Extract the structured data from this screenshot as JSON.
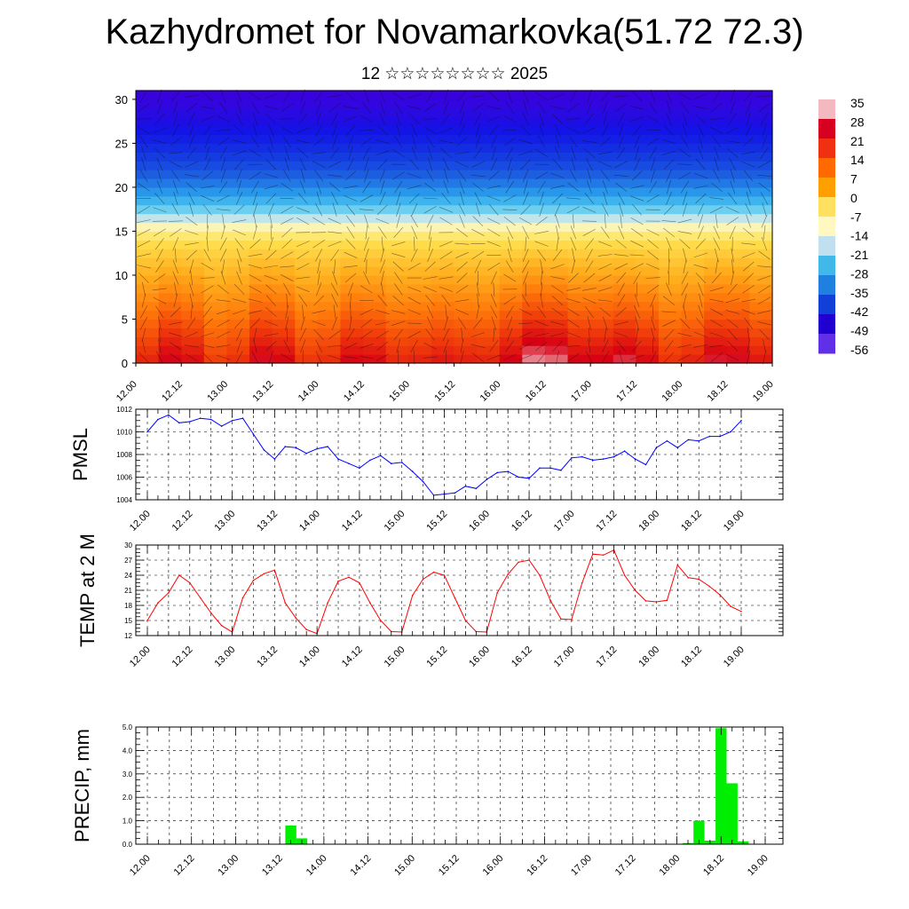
{
  "title": "Kazhydromet for Novamarkovka(51.72 72.3)",
  "subtitle": "12 ☆☆☆☆☆☆☆☆ 2025",
  "x_labels": [
    "12.00",
    "12.12",
    "13.00",
    "13.12",
    "14.00",
    "14.12",
    "15.00",
    "15.12",
    "16.00",
    "16.12",
    "17.00",
    "17.12",
    "18.00",
    "18.12",
    "19.00"
  ],
  "chart_data": [
    {
      "type": "heatmap",
      "title": "",
      "xlabel": "",
      "ylabel": "",
      "ylim": [
        0,
        31
      ],
      "y_ticks": [
        0,
        5,
        10,
        15,
        20,
        25,
        30
      ],
      "colorbar": {
        "labels": [
          "35",
          "28",
          "21",
          "14",
          "7",
          "0",
          "-7",
          "-14",
          "-21",
          "-28",
          "-35",
          "-42",
          "-49",
          "-56"
        ],
        "colors_top_to_bottom": [
          "#f4b8c0",
          "#d80020",
          "#f03010",
          "#ff6a00",
          "#ffa000",
          "#ffe060",
          "#fff8c0",
          "#c0e0f0",
          "#40b8e8",
          "#2080e0",
          "#1040d8",
          "#2000d0",
          "#6030e8"
        ]
      },
      "temperature_profile": {
        "heights": [
          0,
          5,
          10,
          14,
          16,
          18,
          20,
          22,
          25,
          28,
          31
        ],
        "values": [
          25,
          16,
          7,
          0,
          -10,
          -22,
          -30,
          -38,
          -46,
          -52,
          -56
        ]
      },
      "surface_anomaly": [
        0,
        2,
        -2,
        3,
        -1,
        1,
        2,
        -3,
        4,
        7,
        6,
        2,
        0,
        3,
        4
      ]
    },
    {
      "type": "line",
      "ylabel": "PMSL",
      "ylim": [
        1004,
        1012
      ],
      "y_ticks": [
        1004,
        1006,
        1008,
        1010,
        1012
      ],
      "color": "#0000ff",
      "values": [
        1010.0,
        1011.1,
        1011.5,
        1010.8,
        1010.9,
        1011.2,
        1011.1,
        1010.5,
        1011.0,
        1011.2,
        1009.8,
        1008.4,
        1007.6,
        1008.7,
        1008.6,
        1008.1,
        1008.5,
        1008.7,
        1007.6,
        1007.2,
        1006.8,
        1007.5,
        1007.9,
        1007.2,
        1007.3,
        1006.5,
        1005.6,
        1004.4,
        1004.5,
        1004.6,
        1005.2,
        1005.0,
        1005.8,
        1006.4,
        1006.5,
        1006.0,
        1005.9,
        1006.8,
        1006.8,
        1006.6,
        1007.7,
        1007.8,
        1007.5,
        1007.6,
        1007.8,
        1008.3,
        1007.6,
        1007.1,
        1008.6,
        1009.2,
        1008.6,
        1009.3,
        1009.2,
        1009.6,
        1009.6,
        1010.0,
        1011.0
      ]
    },
    {
      "type": "line",
      "ylabel": "TEMP at 2 M",
      "ylim": [
        12,
        30
      ],
      "y_ticks": [
        12,
        15,
        18,
        21,
        24,
        27,
        30
      ],
      "color": "#ff0000",
      "values": [
        15.0,
        18.5,
        20.5,
        24.0,
        22.5,
        19.5,
        16.5,
        14.0,
        12.7,
        19.5,
        23.0,
        24.3,
        25.0,
        18.5,
        15.5,
        13.2,
        12.4,
        18.5,
        22.8,
        23.6,
        22.5,
        18.5,
        15.0,
        12.8,
        12.7,
        20.0,
        23.2,
        24.6,
        24.0,
        19.5,
        15.0,
        12.8,
        12.7,
        20.5,
        24.2,
        26.6,
        27.0,
        24.0,
        19.0,
        15.3,
        15.2,
        22.5,
        28.2,
        28.0,
        29.0,
        24.0,
        21.0,
        18.9,
        18.7,
        19.0,
        26.0,
        23.5,
        23.2,
        21.8,
        20.1,
        17.8,
        16.8
      ]
    },
    {
      "type": "bar",
      "ylabel": "PRECIP, mm",
      "ylim": [
        0,
        5
      ],
      "y_ticks": [
        "0.0",
        "1.0",
        "2.0",
        "3.0",
        "4.0",
        "5.0"
      ],
      "color": "#00ee00",
      "values": [
        0,
        0,
        0,
        0,
        0,
        0,
        0,
        0,
        0,
        0,
        0,
        0,
        0,
        0.8,
        0.25,
        0,
        0,
        0,
        0,
        0,
        0,
        0,
        0,
        0,
        0,
        0,
        0,
        0,
        0,
        0,
        0,
        0,
        0,
        0,
        0,
        0,
        0,
        0,
        0,
        0,
        0,
        0,
        0,
        0,
        0,
        0,
        0,
        0,
        0,
        0.05,
        1.0,
        0.15,
        4.95,
        2.6,
        0.12,
        0,
        0
      ]
    }
  ]
}
